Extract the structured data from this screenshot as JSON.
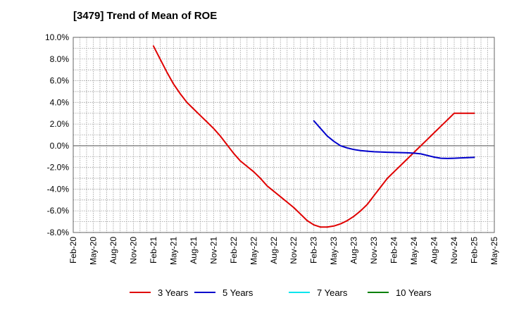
{
  "chart_data": {
    "type": "line",
    "title": "[3479]  Trend of Mean of ROE",
    "xlabel": "",
    "ylabel": "",
    "ylim": [
      -8.0,
      10.0
    ],
    "yticks": [
      "10.0%",
      "8.0%",
      "6.0%",
      "4.0%",
      "2.0%",
      "0.0%",
      "-2.0%",
      "-4.0%",
      "-6.0%",
      "-8.0%"
    ],
    "ytick_values": [
      10,
      8,
      6,
      4,
      2,
      0,
      -2,
      -4,
      -6,
      -8
    ],
    "xticks": [
      "Feb-20",
      "May-20",
      "Aug-20",
      "Nov-20",
      "Feb-21",
      "May-21",
      "Aug-21",
      "Nov-21",
      "Feb-22",
      "May-22",
      "Aug-22",
      "Nov-22",
      "Feb-23",
      "May-23",
      "Aug-23",
      "Nov-23",
      "Feb-24",
      "May-24",
      "Aug-24",
      "Nov-24",
      "Feb-25",
      "May-25"
    ],
    "grid": true,
    "legend_position": "bottom",
    "series": [
      {
        "name": "3 Years",
        "color": "#e00000",
        "x": [
          "Feb-21",
          "Mar-21",
          "Apr-21",
          "May-21",
          "Jun-21",
          "Jul-21",
          "Aug-21",
          "Sep-21",
          "Oct-21",
          "Nov-21",
          "Dec-21",
          "Jan-22",
          "Feb-22",
          "Mar-22",
          "Apr-22",
          "May-22",
          "Jun-22",
          "Jul-22",
          "Aug-22",
          "Sep-22",
          "Oct-22",
          "Nov-22",
          "Dec-22",
          "Jan-23",
          "Feb-23",
          "Mar-23",
          "Apr-23",
          "May-23",
          "Jun-23",
          "Jul-23",
          "Aug-23",
          "Sep-23",
          "Oct-23",
          "Nov-23",
          "Dec-23",
          "Jan-24",
          "Feb-24",
          "Mar-24",
          "Apr-24",
          "May-24",
          "Jun-24",
          "Jul-24",
          "Aug-24",
          "Sep-24",
          "Oct-24",
          "Nov-24",
          "Dec-24",
          "Jan-25",
          "Feb-25"
        ],
        "values": [
          9.2,
          8.0,
          6.8,
          5.7,
          4.8,
          4.0,
          3.4,
          2.8,
          2.2,
          1.6,
          0.9,
          0.1,
          -0.7,
          -1.4,
          -1.9,
          -2.4,
          -3.0,
          -3.7,
          -4.2,
          -4.7,
          -5.2,
          -5.7,
          -6.3,
          -6.9,
          -7.3,
          -7.5,
          -7.5,
          -7.4,
          -7.2,
          -6.9,
          -6.5,
          -6.0,
          -5.4,
          -4.6,
          -3.8,
          -3.0,
          -2.4,
          -1.8,
          -1.2,
          -0.6,
          0.0,
          0.6,
          1.2,
          1.8,
          2.4,
          3.0,
          3.0,
          3.0,
          3.0
        ],
        "values_note": ""
      },
      {
        "name": "5 Years",
        "color": "#0000cc",
        "x": [
          "Feb-23",
          "Mar-23",
          "Apr-23",
          "May-23",
          "Jun-23",
          "Jul-23",
          "Aug-23",
          "Sep-23",
          "Oct-23",
          "Nov-23",
          "Dec-23",
          "Jan-24",
          "Feb-24",
          "Mar-24",
          "Apr-24",
          "May-24",
          "Jun-24",
          "Jul-24",
          "Aug-24",
          "Sep-24",
          "Oct-24",
          "Nov-24",
          "Dec-24",
          "Jan-25",
          "Feb-25"
        ],
        "values": [
          2.3,
          1.6,
          0.9,
          0.4,
          0.0,
          -0.2,
          -0.35,
          -0.45,
          -0.5,
          -0.55,
          -0.58,
          -0.6,
          -0.62,
          -0.63,
          -0.65,
          -0.68,
          -0.75,
          -0.9,
          -1.05,
          -1.15,
          -1.17,
          -1.15,
          -1.12,
          -1.1,
          -1.07
        ]
      },
      {
        "name": "7 Years",
        "color": "#00e5ee",
        "x": [],
        "values": []
      },
      {
        "name": "10 Years",
        "color": "#008000",
        "x": [],
        "values": []
      }
    ]
  }
}
